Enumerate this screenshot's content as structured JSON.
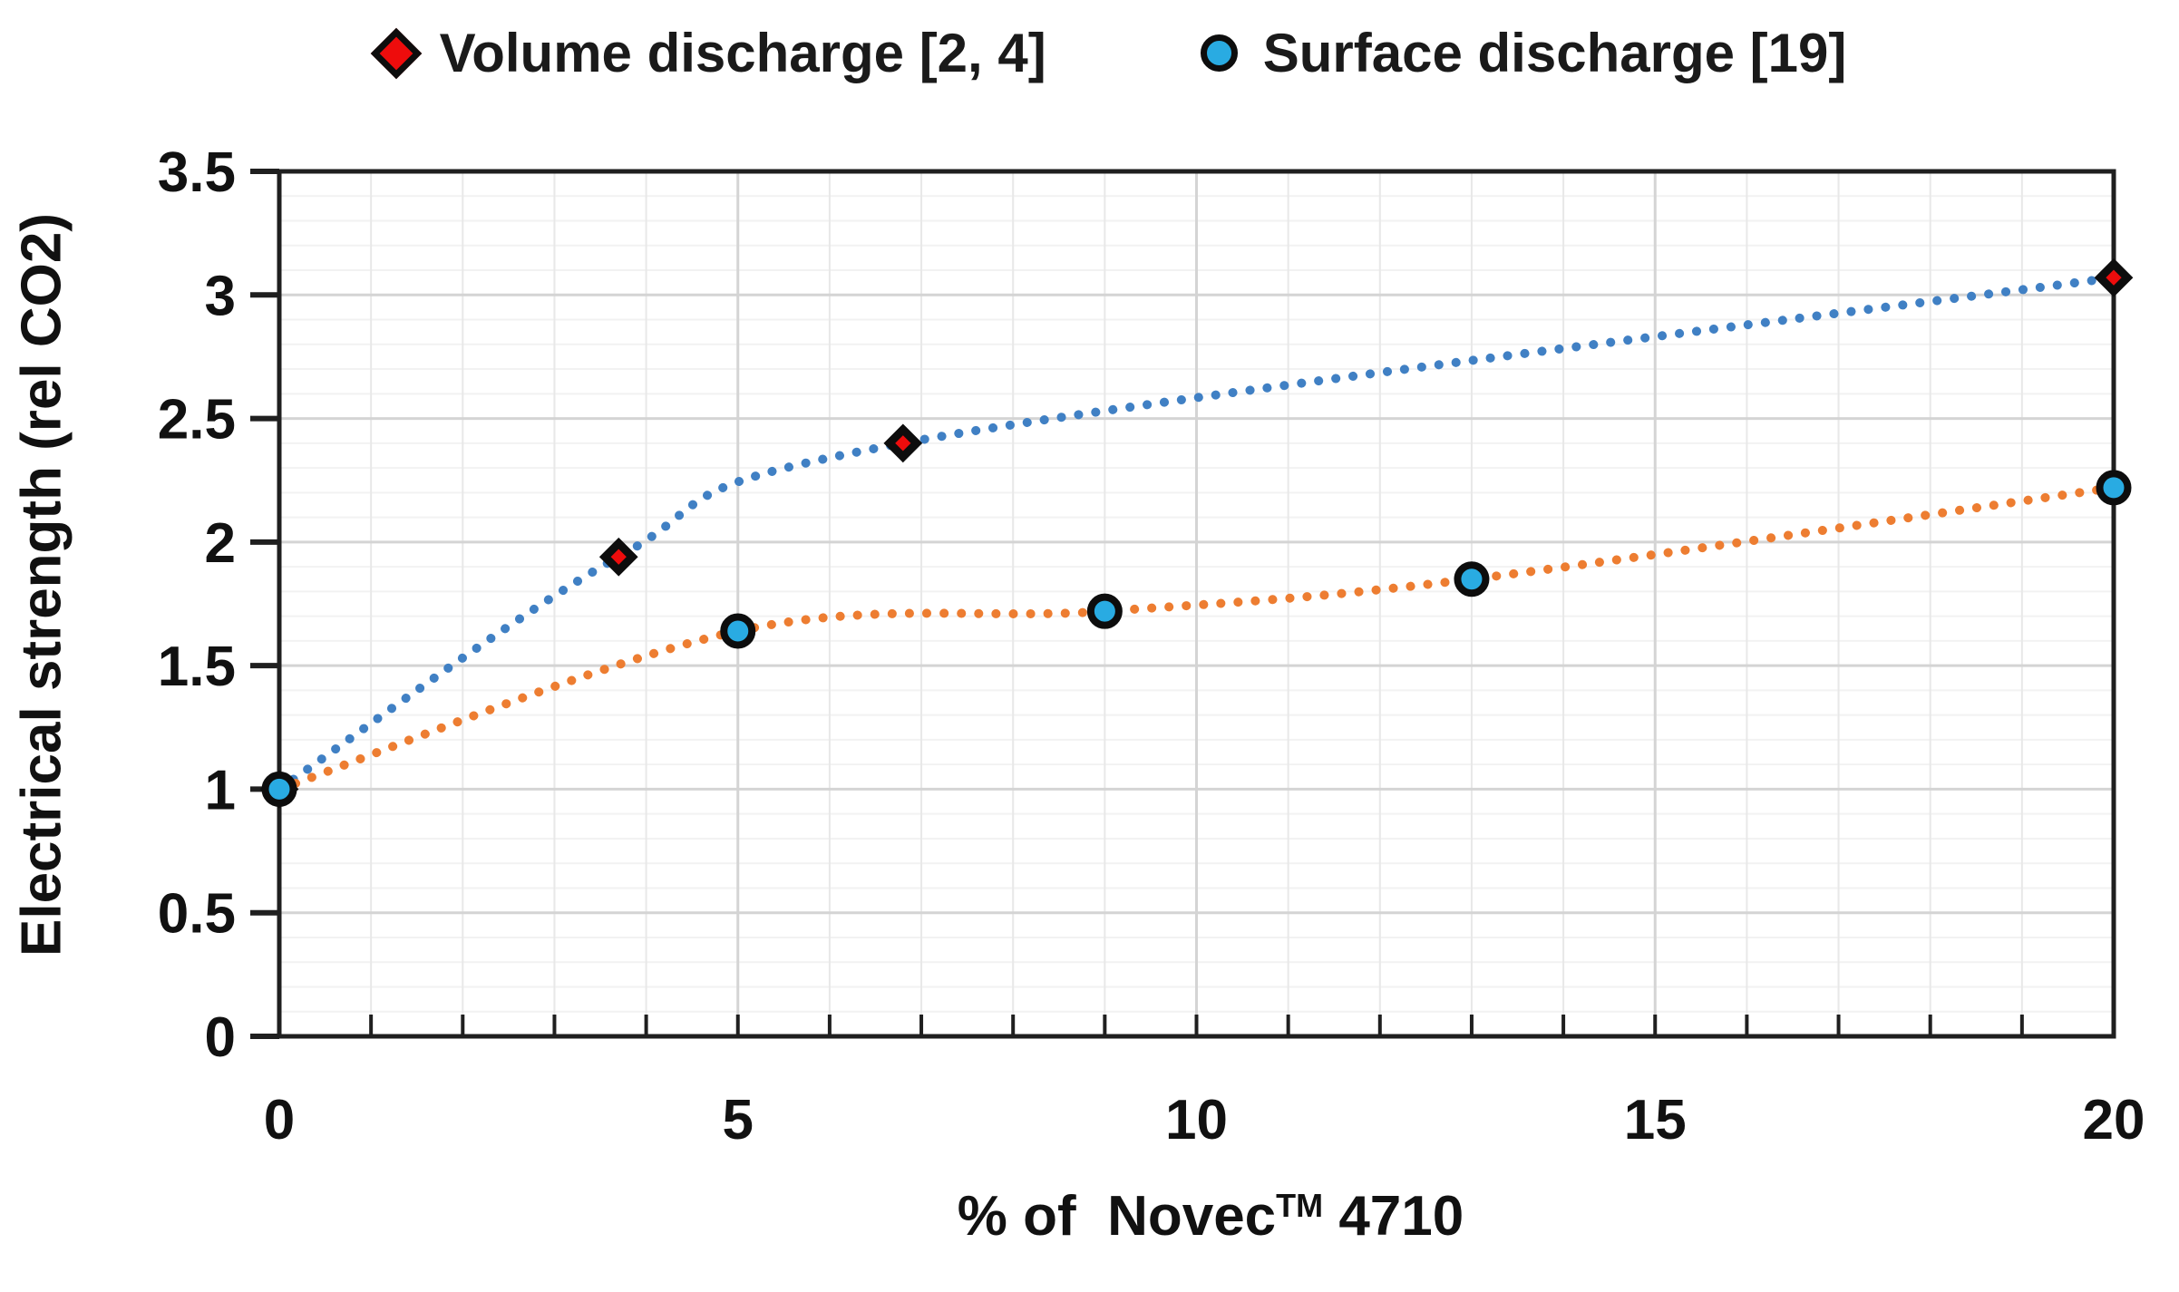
{
  "legend": {
    "items": [
      {
        "label": "Volume discharge [2, 4]",
        "marker": "diamond",
        "marker_color": "#ee0c0c"
      },
      {
        "label": "Surface discharge [19]",
        "marker": "circle",
        "marker_color": "#29abe2"
      }
    ]
  },
  "axes": {
    "y_title": "Electrical strength (rel CO2)",
    "x_title_main": "% of  Novec",
    "x_title_sup": "TM",
    "x_title_tail": " 4710"
  },
  "chart_data": {
    "type": "scatter",
    "title": "",
    "xlabel": "% of Novec™ 4710",
    "ylabel": "Electrical strength (rel CO2)",
    "xlim": [
      0,
      20
    ],
    "ylim": [
      0,
      3.5
    ],
    "x_ticks": [
      0,
      5,
      10,
      15,
      20
    ],
    "y_ticks": [
      0,
      0.5,
      1,
      1.5,
      2,
      2.5,
      3,
      3.5
    ],
    "x_minor_step": 1,
    "y_minor_step": 0.1,
    "grid": true,
    "legend_position": "top",
    "series": [
      {
        "name": "Volume discharge [2, 4]",
        "marker": "diamond",
        "marker_color": "#ee0c0c",
        "marker_outline": "#0d0d0d",
        "line_color": "#4080c4",
        "line_style": "dotted",
        "points": [
          [
            0,
            1.0
          ],
          [
            3.7,
            1.94
          ],
          [
            6.8,
            2.4
          ],
          [
            20,
            3.07
          ]
        ]
      },
      {
        "name": "Surface discharge [19]",
        "marker": "circle",
        "marker_color": "#29abe2",
        "marker_outline": "#0d0d0d",
        "line_color": "#ed7d31",
        "line_style": "dotted",
        "points": [
          [
            0,
            1.0
          ],
          [
            5,
            1.64
          ],
          [
            9,
            1.72
          ],
          [
            13,
            1.85
          ],
          [
            20,
            2.22
          ]
        ]
      }
    ],
    "colors": {
      "frame": "#1f1f1f",
      "major_grid": "#d4d4d4",
      "minor_grid_v": "#e8e8e8",
      "minor_grid_h": "#f2f2f2"
    }
  }
}
